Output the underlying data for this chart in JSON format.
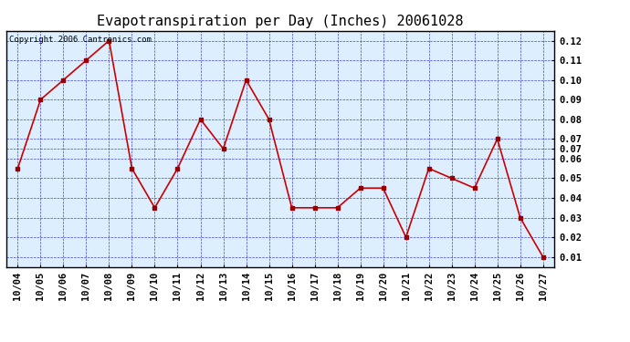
{
  "title": "Evapotranspiration per Day (Inches) 20061028",
  "copyright": "Copyright 2006 Cantronics.com",
  "x_labels": [
    "10/04",
    "10/05",
    "10/06",
    "10/07",
    "10/08",
    "10/09",
    "10/10",
    "10/11",
    "10/12",
    "10/13",
    "10/14",
    "10/15",
    "10/16",
    "10/17",
    "10/18",
    "10/19",
    "10/20",
    "10/21",
    "10/22",
    "10/23",
    "10/24",
    "10/25",
    "10/26",
    "10/27"
  ],
  "y_values": [
    0.055,
    0.09,
    0.1,
    0.11,
    0.12,
    0.055,
    0.035,
    0.055,
    0.08,
    0.065,
    0.1,
    0.08,
    0.035,
    0.035,
    0.035,
    0.045,
    0.045,
    0.02,
    0.055,
    0.05,
    0.045,
    0.07,
    0.03,
    0.01
  ],
  "y_tick_positions": [
    0.01,
    0.02,
    0.03,
    0.04,
    0.05,
    0.06,
    0.065,
    0.07,
    0.08,
    0.09,
    0.1,
    0.11,
    0.12
  ],
  "y_tick_labels": [
    "0.01",
    "0.02",
    "0.03",
    "0.04",
    "0.05",
    "0.06",
    "0.07",
    "0.07",
    "0.08",
    "0.09",
    "0.10",
    "0.11",
    "0.12"
  ],
  "ylim_min": 0.005,
  "ylim_max": 0.125,
  "line_color": "#cc0000",
  "marker_color": "#990000",
  "grid_color": "#3333cc",
  "plot_bg_color": "#ddeeff",
  "fig_bg_color": "#ffffff",
  "title_fontsize": 11,
  "copyright_fontsize": 6.5,
  "tick_fontsize": 7.5
}
